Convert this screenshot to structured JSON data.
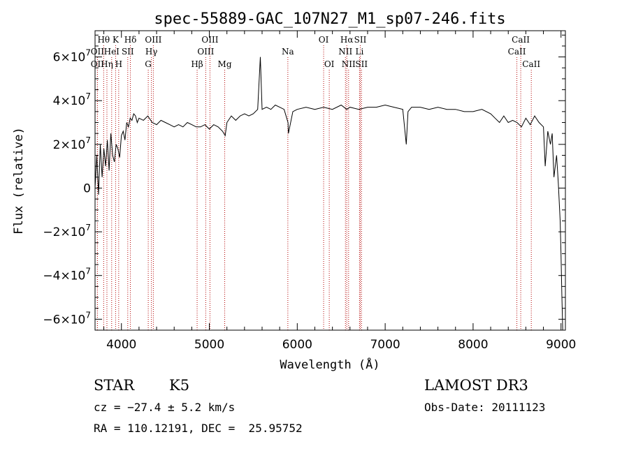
{
  "chart_data": {
    "type": "line",
    "title": "spec-55889-GAC_107N27_M1_sp07-246.fits",
    "xlabel": "Wavelength (Å)",
    "ylabel": "Flux (relative)",
    "xlim": [
      3700,
      9050
    ],
    "ylim": [
      -65000000,
      72000000
    ],
    "x_ticks": [
      4000,
      5000,
      6000,
      7000,
      8000,
      9000
    ],
    "x_tick_labels": [
      "4000",
      "5000",
      "6000",
      "7000",
      "8000",
      "9000"
    ],
    "y_ticks": [
      -60000000,
      -40000000,
      -20000000,
      0,
      20000000,
      40000000,
      60000000
    ],
    "y_tick_labels": [
      {
        "mant": "−6×10",
        "exp": "7"
      },
      {
        "mant": "−4×10",
        "exp": "7"
      },
      {
        "mant": "−2×10",
        "exp": "7"
      },
      {
        "mant": "0",
        "exp": ""
      },
      {
        "mant": "2×10",
        "exp": "7"
      },
      {
        "mant": "4×10",
        "exp": "7"
      },
      {
        "mant": "6×10",
        "exp": "7"
      }
    ],
    "series": [
      {
        "x": [
          3700,
          3720,
          3740,
          3760,
          3780,
          3800,
          3820,
          3840,
          3860,
          3880,
          3900,
          3920,
          3940,
          3960,
          3980,
          4000,
          4020,
          4040,
          4060,
          4080,
          4100,
          4120,
          4140,
          4160,
          4180,
          4200,
          4250,
          4300,
          4350,
          4400,
          4450,
          4500,
          4550,
          4600,
          4650,
          4700,
          4750,
          4800,
          4850,
          4900,
          4950,
          5000,
          5050,
          5100,
          5150,
          5180,
          5200,
          5250,
          5300,
          5350,
          5400,
          5450,
          5500,
          5550,
          5580,
          5600,
          5650,
          5700,
          5750,
          5800,
          5850,
          5895,
          5900,
          5950,
          6000,
          6100,
          6200,
          6300,
          6400,
          6500,
          6563,
          6600,
          6700,
          6800,
          6900,
          7000,
          7100,
          7200,
          7240,
          7260,
          7300,
          7400,
          7500,
          7600,
          7700,
          7800,
          7900,
          8000,
          8100,
          8200,
          8250,
          8300,
          8350,
          8400,
          8450,
          8500,
          8550,
          8600,
          8650,
          8700,
          8750,
          8800,
          8820,
          8850,
          8880,
          8900,
          8920,
          8950,
          8970,
          8990,
          9000,
          9010,
          9020
        ],
        "y": [
          0,
          15000000,
          -3000000,
          20000000,
          5000000,
          18000000,
          10000000,
          22000000,
          8000000,
          25000000,
          15000000,
          12000000,
          20000000,
          18000000,
          14000000,
          24000000,
          26000000,
          22000000,
          30000000,
          28000000,
          32000000,
          31000000,
          34000000,
          33000000,
          30000000,
          32000000,
          31000000,
          33000000,
          30000000,
          29000000,
          31000000,
          30000000,
          29000000,
          28000000,
          29000000,
          28000000,
          30000000,
          29000000,
          28000000,
          28000000,
          29000000,
          27000000,
          29000000,
          28000000,
          26000000,
          24000000,
          30000000,
          33000000,
          31000000,
          33000000,
          34000000,
          33000000,
          34000000,
          36000000,
          60000000,
          36000000,
          37000000,
          36000000,
          38000000,
          37000000,
          36000000,
          30000000,
          25000000,
          35000000,
          36000000,
          37000000,
          36000000,
          37000000,
          36000000,
          38000000,
          36000000,
          37000000,
          36000000,
          37000000,
          37000000,
          38000000,
          37000000,
          36000000,
          20000000,
          35000000,
          37000000,
          37000000,
          36000000,
          37000000,
          36000000,
          36000000,
          35000000,
          35000000,
          36000000,
          34000000,
          32000000,
          30000000,
          33000000,
          30000000,
          31000000,
          30000000,
          28000000,
          32000000,
          29000000,
          33000000,
          30000000,
          28000000,
          10000000,
          26000000,
          20000000,
          25000000,
          5000000,
          15000000,
          2000000,
          -15000000,
          -30000000,
          -50000000,
          -65000000
        ]
      }
    ],
    "line_markers": [
      {
        "label": "Hθ",
        "wl": 3798,
        "row": 0
      },
      {
        "label": "OII",
        "wl": 3727,
        "row": 1
      },
      {
        "label": "OII",
        "wl": 3727,
        "row": 2
      },
      {
        "label": "K",
        "wl": 3934,
        "row": 0
      },
      {
        "label": "HeI",
        "wl": 3889,
        "row": 1
      },
      {
        "label": "Hη",
        "wl": 3835,
        "row": 2
      },
      {
        "label": "Hδ",
        "wl": 4102,
        "row": 0
      },
      {
        "label": "SII",
        "wl": 4072,
        "row": 1
      },
      {
        "label": "H",
        "wl": 3969,
        "row": 2
      },
      {
        "label": "OIII",
        "wl": 4363,
        "row": 0
      },
      {
        "label": "Hγ",
        "wl": 4341,
        "row": 1
      },
      {
        "label": "G",
        "wl": 4305,
        "row": 2
      },
      {
        "label": "OIII",
        "wl": 5007,
        "row": 0
      },
      {
        "label": "OIII",
        "wl": 4959,
        "row": 1
      },
      {
        "label": "Hβ",
        "wl": 4861,
        "row": 2
      },
      {
        "label": "Mg",
        "wl": 5175,
        "row": 2
      },
      {
        "label": "Na",
        "wl": 5893,
        "row": 1
      },
      {
        "label": "OI",
        "wl": 6300,
        "row": 0
      },
      {
        "label": "OI",
        "wl": 6364,
        "row": 2
      },
      {
        "label": "Hα",
        "wl": 6563,
        "row": 0
      },
      {
        "label": "NII",
        "wl": 6548,
        "row": 1
      },
      {
        "label": "NII",
        "wl": 6584,
        "row": 2
      },
      {
        "label": "SII",
        "wl": 6717,
        "row": 0
      },
      {
        "label": "Li",
        "wl": 6708,
        "row": 1
      },
      {
        "label": "SII",
        "wl": 6731,
        "row": 2
      },
      {
        "label": "CaII",
        "wl": 8542,
        "row": 0
      },
      {
        "label": "CaII",
        "wl": 8498,
        "row": 1
      },
      {
        "label": "CaII",
        "wl": 8662,
        "row": 2
      }
    ]
  },
  "info": {
    "class_label": "STAR",
    "subclass_label": "K5",
    "survey": "LAMOST DR3",
    "cz_text": "cz = −27.4 ± 5.2 km/s",
    "obs_date_text": "Obs-Date: 20111123",
    "radec_text": "RA = 110.12191, DEC =  25.95752"
  },
  "colors": {
    "spectrum": "#000000",
    "marker_line": "#b30000",
    "axis": "#000000"
  }
}
